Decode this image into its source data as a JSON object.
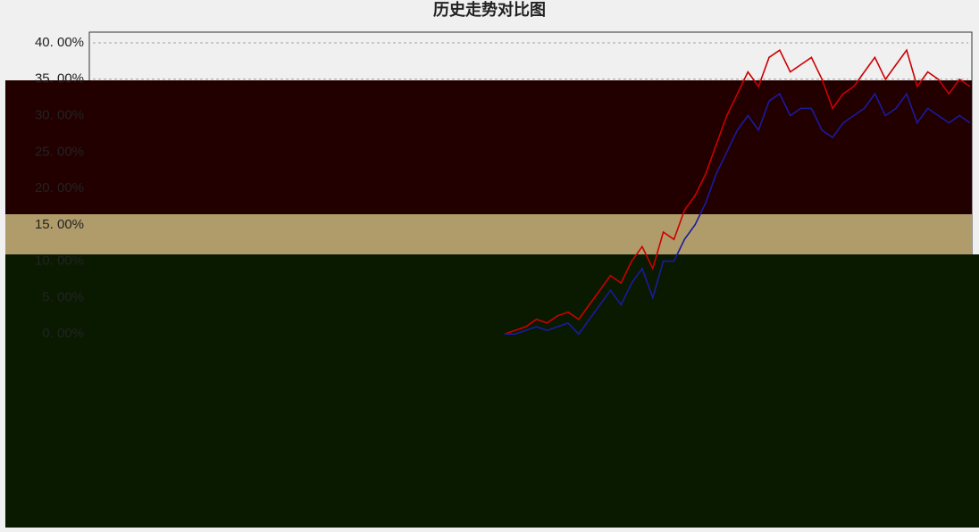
{
  "chart_data": {
    "type": "line",
    "title": "历史走势对比图",
    "ylim": [
      -25,
      40
    ],
    "yticks": [
      {
        "value": 40,
        "label": "40. 00%"
      },
      {
        "value": 35,
        "label": "35. 00%"
      },
      {
        "value": 30,
        "label": "30. 00%"
      },
      {
        "value": 25,
        "label": "25. 00%"
      },
      {
        "value": 20,
        "label": "20. 00%"
      },
      {
        "value": 15,
        "label": "15. 00%"
      },
      {
        "value": 10,
        "label": "10. 00%"
      },
      {
        "value": 5,
        "label": "5. 00%"
      },
      {
        "value": 0,
        "label": "0. 00%"
      }
    ],
    "grid": true,
    "series": [
      {
        "color": "#cc0000",
        "values": [
          0,
          0.5,
          1,
          2,
          1.5,
          2.5,
          3,
          2,
          4,
          6,
          8,
          7,
          10,
          12,
          9,
          14,
          13,
          17,
          19,
          22,
          26,
          30,
          33,
          36,
          34,
          38,
          39,
          36,
          37,
          38,
          35,
          31,
          33,
          34,
          36,
          38,
          35,
          37,
          39,
          34,
          36,
          35,
          33,
          35,
          34
        ]
      },
      {
        "color": "#1a1aa0",
        "values": [
          0,
          0,
          0.5,
          1,
          0.5,
          1,
          1.5,
          0,
          2,
          4,
          6,
          4,
          7,
          9,
          5,
          10,
          10,
          13,
          15,
          18,
          22,
          25,
          28,
          30,
          28,
          32,
          33,
          30,
          31,
          31,
          28,
          27,
          29,
          30,
          31,
          33,
          30,
          31,
          33,
          29,
          31,
          30,
          29,
          30,
          29
        ]
      }
    ]
  }
}
